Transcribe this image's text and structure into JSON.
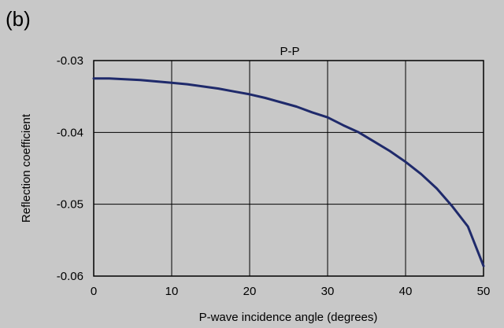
{
  "panel_label": "(b)",
  "chart_data": {
    "type": "line",
    "title": "P-P",
    "xlabel": "P-wave incidence angle (degrees)",
    "ylabel": "Reflection coefficient",
    "xlim": [
      0,
      50
    ],
    "ylim": [
      -0.06,
      -0.03
    ],
    "x_ticks": [
      "0",
      "10",
      "20",
      "30",
      "40",
      "50"
    ],
    "y_ticks": [
      "-0.03",
      "-0.04",
      "-0.05",
      "-0.06"
    ],
    "x_tick_values": [
      0,
      10,
      20,
      30,
      40,
      50
    ],
    "y_tick_values": [
      -0.03,
      -0.04,
      -0.05,
      -0.06
    ],
    "grid": true,
    "series": [
      {
        "color": "#1f2a6b",
        "x": [
          0,
          2,
          4,
          6,
          8,
          10,
          12,
          14,
          16,
          18,
          20,
          22,
          24,
          26,
          28,
          30,
          32,
          34,
          36,
          38,
          40,
          42,
          44,
          46,
          48,
          50
        ],
        "y": [
          -0.0325,
          -0.0325,
          -0.0326,
          -0.0327,
          -0.0329,
          -0.0331,
          -0.0333,
          -0.0336,
          -0.0339,
          -0.0343,
          -0.0347,
          -0.0352,
          -0.0358,
          -0.0364,
          -0.0372,
          -0.0379,
          -0.039,
          -0.04,
          -0.0413,
          -0.0426,
          -0.0441,
          -0.0458,
          -0.0478,
          -0.0503,
          -0.0531,
          -0.0586
        ]
      }
    ]
  }
}
